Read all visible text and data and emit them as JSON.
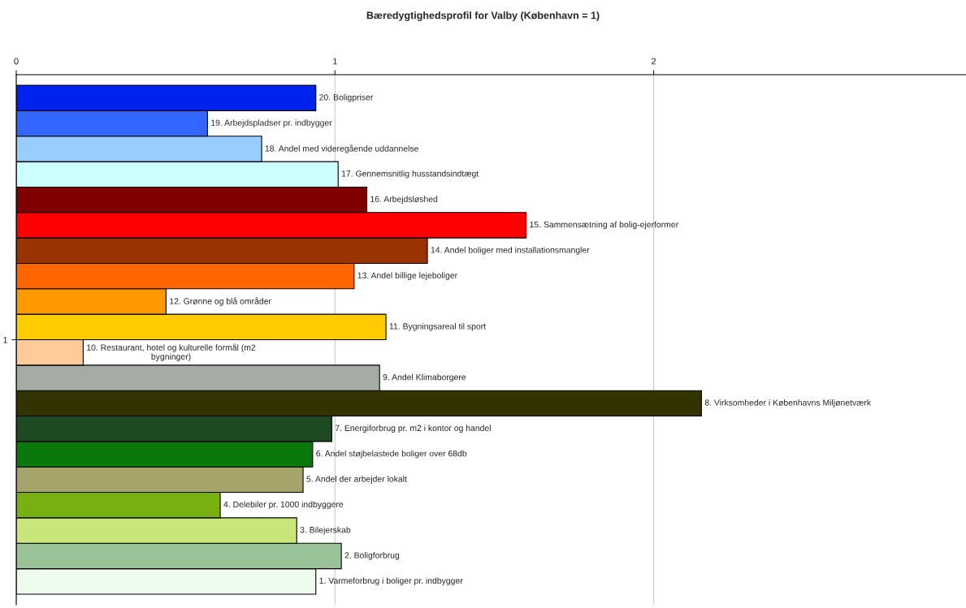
{
  "chart_data": {
    "type": "bar",
    "orientation": "horizontal",
    "title": "Bæredygtighedsprofil for Valby (København = 1)",
    "categories": [
      "1"
    ],
    "series": [
      {
        "name": "1. Varmeforbrug i boliger pr. indbygger",
        "color": "#eefcee",
        "values": [
          0.94
        ]
      },
      {
        "name": "2. Boligforbrug",
        "color": "#99c299",
        "values": [
          1.02
        ]
      },
      {
        "name": "3. Bilejerskab",
        "color": "#c8e67a",
        "values": [
          0.88
        ]
      },
      {
        "name": "4. Delebiler pr. 1000 indbyggere",
        "color": "#78b012",
        "values": [
          0.64
        ]
      },
      {
        "name": "5. Andel der arbejder lokalt",
        "color": "#a6a46a",
        "values": [
          0.9
        ]
      },
      {
        "name": "6. Andel støjbelastede boliger over 68db",
        "color": "#0a780a",
        "values": [
          0.93
        ]
      },
      {
        "name": "7. Energiforbrug pr. m2 i kontor og handel",
        "color": "#1e4a22",
        "values": [
          0.99
        ]
      },
      {
        "name": "8. Virksomheder i Københavns Miljønetværk",
        "color": "#333300",
        "values": [
          2.15
        ]
      },
      {
        "name": "9. Andel Klimaborgere",
        "color": "#a4aca4",
        "values": [
          1.14
        ]
      },
      {
        "name": "10. Restaurant, hotel og kulturelle formål (m2\nbygninger)",
        "color": "#ffcc99",
        "values": [
          0.21
        ]
      },
      {
        "name": "11. Bygningsareal til sport",
        "color": "#ffcc00",
        "values": [
          1.16
        ]
      },
      {
        "name": "12. Grønne og blå områder",
        "color": "#ff9900",
        "values": [
          0.47
        ]
      },
      {
        "name": "13. Andel billige lejeboliger",
        "color": "#ff6600",
        "values": [
          1.06
        ]
      },
      {
        "name": "14. Andel boliger med installationsmangler",
        "color": "#993300",
        "values": [
          1.29
        ]
      },
      {
        "name": "15. Sammensætning af bolig-ejerformer",
        "color": "#ff0000",
        "values": [
          1.6
        ]
      },
      {
        "name": "16. Arbejdsløshed",
        "color": "#800000",
        "values": [
          1.1
        ]
      },
      {
        "name": "17. Gennemsnitlig husstandsindtægt",
        "color": "#ccffff",
        "values": [
          1.01
        ]
      },
      {
        "name": "18. Andel med videregående uddannelse",
        "color": "#99ccff",
        "values": [
          0.77
        ]
      },
      {
        "name": "19. Arbejdspladser pr. indbygger",
        "color": "#3366ff",
        "values": [
          0.6
        ]
      },
      {
        "name": "20. Boligpriser",
        "color": "#0022ee",
        "values": [
          0.94
        ]
      }
    ],
    "xlim": [
      0,
      2.98
    ],
    "xticks": [
      0,
      1,
      2
    ],
    "grid": "x"
  }
}
